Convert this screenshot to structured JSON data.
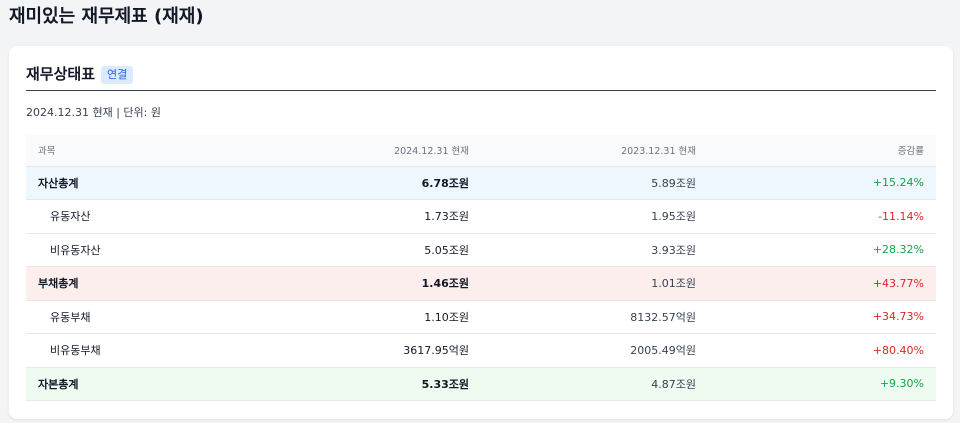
{
  "page": {
    "title": "재미있는 재무제표 (재재)"
  },
  "section": {
    "title": "재무상태표",
    "badge": "연결",
    "subtitle": "2024.12.31 현재 | 단위: 원"
  },
  "table": {
    "headers": [
      "과목",
      "2024.12.31 현재",
      "2023.12.31 현재",
      "증감률"
    ],
    "rows": [
      {
        "label": "자산총계",
        "current": "6.78조원",
        "previous": "5.89조원",
        "change": "+15.24%",
        "kind": "total",
        "group": "asset",
        "change_color": "#16a34a"
      },
      {
        "label": "유동자산",
        "current": "1.73조원",
        "previous": "1.95조원",
        "change": "-11.14%",
        "kind": "sub",
        "group": "",
        "change_color": "#dc2626"
      },
      {
        "label": "비유동자산",
        "current": "5.05조원",
        "previous": "3.93조원",
        "change": "+28.32%",
        "kind": "sub",
        "group": "",
        "change_color": "#16a34a"
      },
      {
        "label": "부채총계",
        "current": "1.46조원",
        "previous": "1.01조원",
        "change": "+43.77%",
        "kind": "total",
        "group": "liab",
        "change_color": "#dc2626"
      },
      {
        "label": "유동부채",
        "current": "1.10조원",
        "previous": "8132.57억원",
        "change": "+34.73%",
        "kind": "sub",
        "group": "",
        "change_color": "#dc2626"
      },
      {
        "label": "비유동부채",
        "current": "3617.95억원",
        "previous": "2005.49억원",
        "change": "+80.40%",
        "kind": "sub",
        "group": "",
        "change_color": "#dc2626"
      },
      {
        "label": "자본총계",
        "current": "5.33조원",
        "previous": "4.87조원",
        "change": "+9.30%",
        "kind": "total",
        "group": "equity",
        "change_color": "#16a34a"
      }
    ]
  }
}
